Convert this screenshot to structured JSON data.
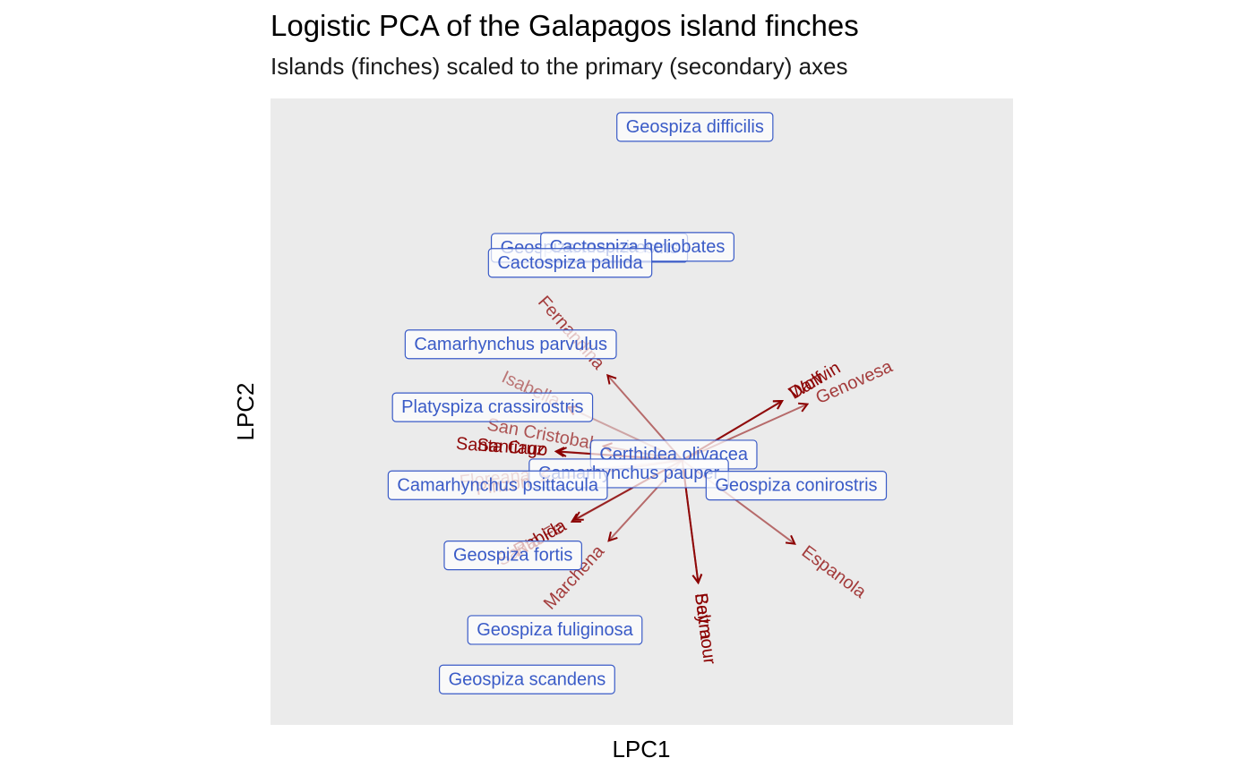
{
  "chart_data": {
    "type": "scatter",
    "title": "Logistic PCA of the Galapagos island finches",
    "subtitle": "Islands (finches) scaled to the primary (secondary) axes",
    "xlabel": "LPC1",
    "ylabel": "LPC2",
    "grid": false,
    "xlim": [
      -1.0,
      1.0
    ],
    "ylim": [
      -1.0,
      1.0
    ],
    "origin": [
      0.109,
      -0.155
    ],
    "colors": {
      "panel": "#ebebeb",
      "finch": "#3a5bc7",
      "island": "#8b0000"
    },
    "finches": [
      {
        "name": "Geospiza difficilis",
        "x": 0.143,
        "y": 0.909
      },
      {
        "name": "Geospiza magnirostris",
        "x": -0.141,
        "y": 0.523
      },
      {
        "name": "Cactospiza heliobates",
        "x": -0.012,
        "y": 0.526
      },
      {
        "name": "Cactospiza pallida",
        "x": -0.193,
        "y": 0.475
      },
      {
        "name": "Camarhynchus parvulus",
        "x": -0.353,
        "y": 0.215
      },
      {
        "name": "Platyspiza crassirostris",
        "x": -0.402,
        "y": 0.014
      },
      {
        "name": "Certhidea olivacea",
        "x": 0.086,
        "y": -0.137
      },
      {
        "name": "Camarhynchus pauper",
        "x": -0.035,
        "y": -0.197
      },
      {
        "name": "Camarhynchus psittacula",
        "x": -0.388,
        "y": -0.235
      },
      {
        "name": "Geospiza conirostris",
        "x": 0.416,
        "y": -0.236
      },
      {
        "name": "Geospiza fortis",
        "x": -0.347,
        "y": -0.459
      },
      {
        "name": "Geospiza fuliginosa",
        "x": -0.234,
        "y": -0.697
      },
      {
        "name": "Geospiza scandens",
        "x": -0.309,
        "y": -0.855
      }
    ],
    "islands": [
      {
        "name": "Fernandina",
        "x": -0.092,
        "y": 0.116,
        "opacity": 0.55
      },
      {
        "name": "Isabella",
        "x": -0.198,
        "y": 0.014,
        "opacity": 0.3
      },
      {
        "name": "San Cristobal",
        "x": -0.103,
        "y": -0.11,
        "opacity": 0.45
      },
      {
        "name": "Santa Cruz",
        "x": -0.231,
        "y": -0.127,
        "opacity": 0.75
      },
      {
        "name": "Santiago",
        "x": -0.225,
        "y": -0.127,
        "opacity": 0.8
      },
      {
        "name": "Floreana",
        "x": -0.272,
        "y": -0.201,
        "opacity": 0.25
      },
      {
        "name": "Pinzon",
        "x": -0.272,
        "y": -0.221,
        "opacity": 0.5
      },
      {
        "name": "Santa Fe",
        "x": -0.188,
        "y": -0.351,
        "opacity": 0.45
      },
      {
        "name": "Rabida",
        "x": -0.181,
        "y": -0.345,
        "opacity": 0.75
      },
      {
        "name": "Marchena",
        "x": -0.089,
        "y": -0.412,
        "opacity": 0.55
      },
      {
        "name": "Baltra",
        "x": 0.152,
        "y": -0.546,
        "opacity": 0.8
      },
      {
        "name": "Seymour",
        "x": 0.152,
        "y": -0.546,
        "opacity": 0.8
      },
      {
        "name": "Espanola",
        "x": 0.412,
        "y": -0.422,
        "opacity": 0.55
      },
      {
        "name": "Darwin",
        "x": 0.378,
        "y": 0.034,
        "opacity": 0.75
      },
      {
        "name": "Wolf",
        "x": 0.378,
        "y": 0.034,
        "opacity": 0.8
      },
      {
        "name": "Genovesa",
        "x": 0.446,
        "y": 0.024,
        "opacity": 0.55
      }
    ]
  }
}
